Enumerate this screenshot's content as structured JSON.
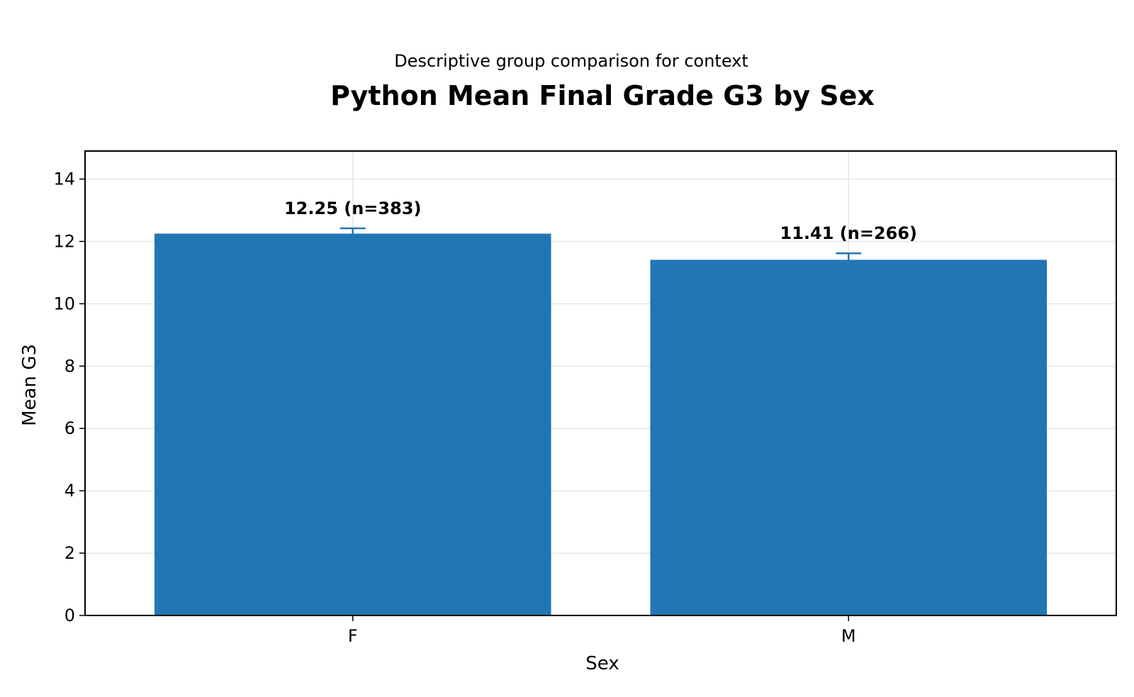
{
  "chart_data": {
    "type": "bar",
    "subtitle": "Descriptive group comparison for context",
    "title": "Python Mean Final Grade G3 by Sex",
    "xlabel": "Sex",
    "ylabel": "Mean G3",
    "categories": [
      "F",
      "M"
    ],
    "values": [
      12.25,
      11.41
    ],
    "error_upper": [
      12.42,
      11.62
    ],
    "error_lower": [
      12.08,
      11.2
    ],
    "data_labels": [
      "12.25 (n=383)",
      "11.41 (n=266)"
    ],
    "ylim": [
      0,
      14.9
    ],
    "yticks": [
      0,
      2,
      4,
      6,
      8,
      10,
      12,
      14
    ],
    "grid": true,
    "colors": {
      "bar": "#2177b4",
      "error_bar": "#2177b4",
      "grid": "#e6e6e6"
    }
  }
}
